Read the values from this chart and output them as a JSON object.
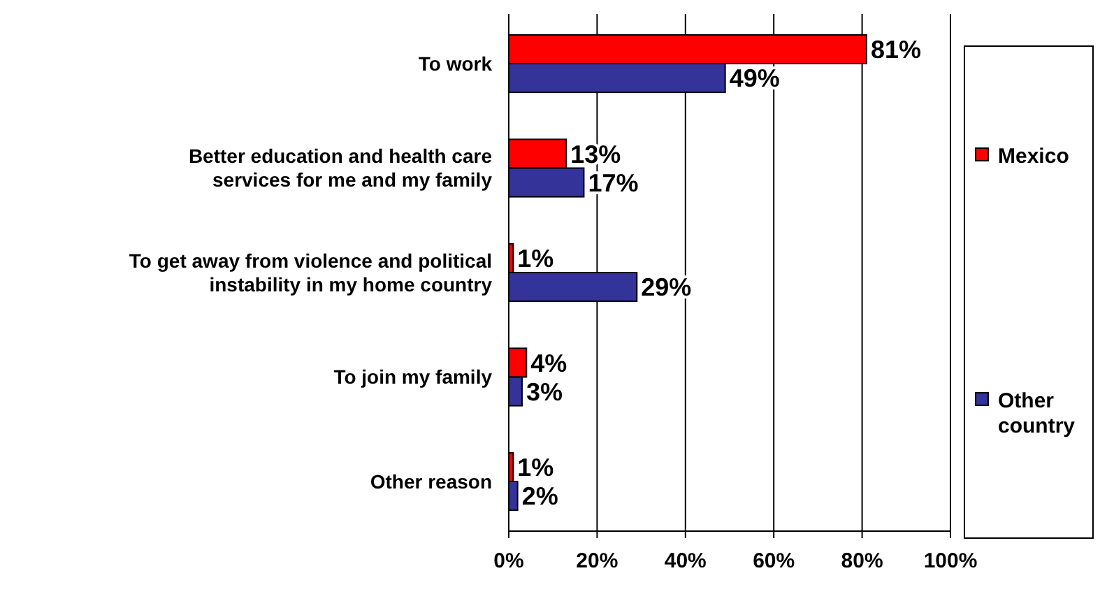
{
  "chart_data": {
    "type": "bar",
    "orientation": "horizontal",
    "categories": [
      "To work",
      "Better education and health care services for me and my family",
      "To get away from violence and political instability in my home country",
      "To join my family",
      "Other reason"
    ],
    "series": [
      {
        "name": "Mexico",
        "color": "#ff0000",
        "values": [
          81,
          13,
          1,
          4,
          1
        ],
        "value_labels": [
          "81%",
          "13%",
          "1%",
          "4%",
          "1%"
        ]
      },
      {
        "name": "Other country",
        "color": "#333399",
        "values": [
          49,
          17,
          29,
          3,
          2
        ],
        "value_labels": [
          "49%",
          "17%",
          "29%",
          "3%",
          "2%"
        ]
      }
    ],
    "xlim": [
      0,
      100
    ],
    "xticks": [
      {
        "value": 0,
        "label": "0%"
      },
      {
        "value": 20,
        "label": "20%"
      },
      {
        "value": 40,
        "label": "40%"
      },
      {
        "value": 60,
        "label": "60%"
      },
      {
        "value": 80,
        "label": "80%"
      },
      {
        "value": 100,
        "label": "100%"
      }
    ],
    "grid": "x",
    "legend": "right"
  }
}
